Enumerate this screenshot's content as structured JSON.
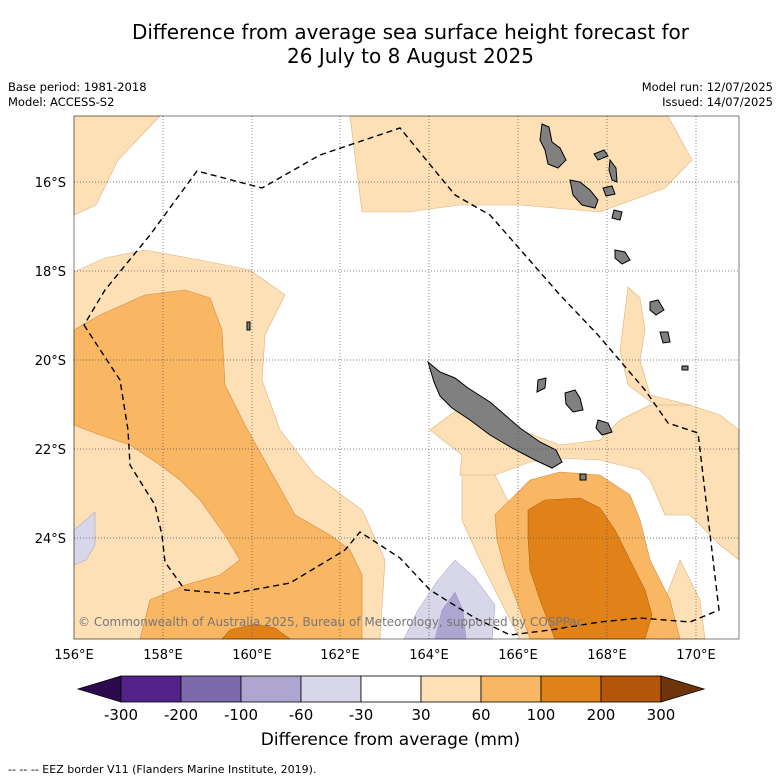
{
  "header": {
    "title_line1": "Difference from average sea surface height forecast for",
    "title_line2": "26 July to 8 August 2025",
    "base_period": "Base period: 1981-2018",
    "model": "Model: ACCESS-S2",
    "model_run": "Model run: 12/07/2025",
    "issued": "Issued: 14/07/2025"
  },
  "map": {
    "lat_labels": [
      "16°S",
      "18°S",
      "20°S",
      "22°S",
      "24°S"
    ],
    "lon_labels": [
      "156°E",
      "158°E",
      "160°E",
      "162°E",
      "164°E",
      "166°E",
      "168°E",
      "170°E"
    ],
    "copyright": "© Commonwealth of Australia 2025, Bureau of Meteorology, supported by COSPPac"
  },
  "colorbar": {
    "tick_labels": [
      "-300",
      "-200",
      "-100",
      "-60",
      "-30",
      "30",
      "60",
      "100",
      "200",
      "300"
    ],
    "colors": [
      "#2d0a4e",
      "#54238a",
      "#7c6aad",
      "#aea6d1",
      "#d8d7ea",
      "#ffffff",
      "#fde0b6",
      "#f9b663",
      "#e08218",
      "#b45609",
      "#6e340a"
    ],
    "title": "Difference from average (mm)"
  },
  "footnote": "-- -- -- EEZ border V11 (Flanders Marine Institute, 2019)."
}
